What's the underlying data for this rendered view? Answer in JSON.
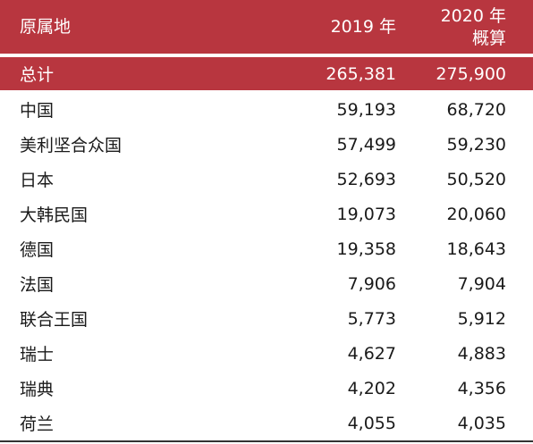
{
  "colors": {
    "header_bg": "#b8363f",
    "header_text": "#ffffff",
    "body_text": "#1a1a1a"
  },
  "header": {
    "origin_label": "原属地",
    "col_2019_label": "2019 年",
    "col_2020_line1": "2020 年",
    "col_2020_line2": "概算"
  },
  "total": {
    "label": "总计",
    "v2019": "265,381",
    "v2020": "275,900"
  },
  "rows": [
    {
      "name": "中国",
      "v2019": "59,193",
      "v2020": "68,720"
    },
    {
      "name": "美利坚合众国",
      "v2019": "57,499",
      "v2020": "59,230"
    },
    {
      "name": "日本",
      "v2019": "52,693",
      "v2020": "50,520"
    },
    {
      "name": "大韩民国",
      "v2019": "19,073",
      "v2020": "20,060"
    },
    {
      "name": "德国",
      "v2019": "19,358",
      "v2020": "18,643"
    },
    {
      "name": "法国",
      "v2019": "7,906",
      "v2020": "7,904"
    },
    {
      "name": "联合王国",
      "v2019": "5,773",
      "v2020": "5,912"
    },
    {
      "name": "瑞士",
      "v2019": "4,627",
      "v2020": "4,883"
    },
    {
      "name": "瑞典",
      "v2019": "4,202",
      "v2020": "4,356"
    },
    {
      "name": "荷兰",
      "v2019": "4,055",
      "v2020": "4,035"
    }
  ]
}
